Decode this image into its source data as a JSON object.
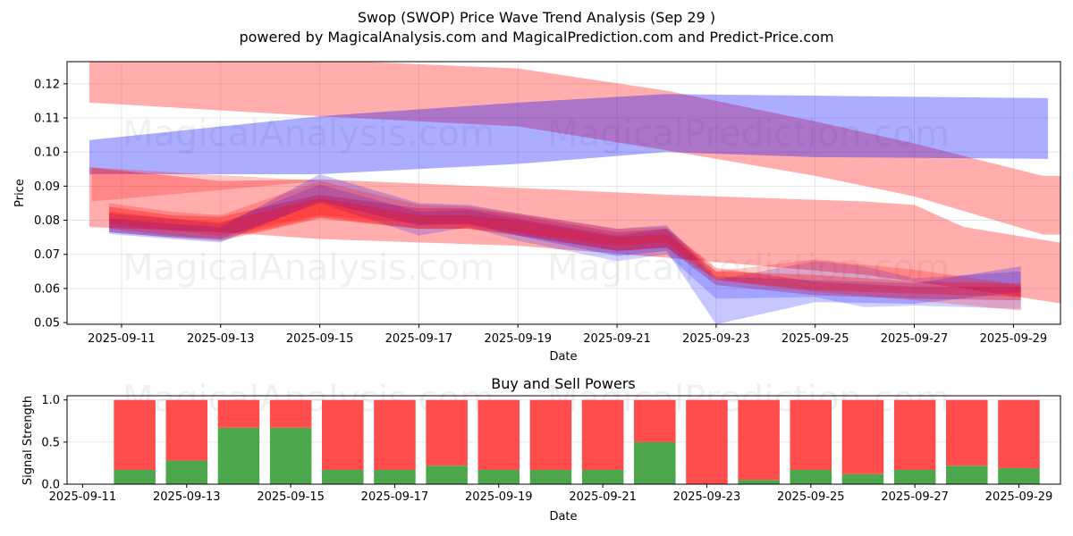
{
  "header": {
    "title": "Swop (SWOP) Price Wave Trend Analysis (Sep 29 )",
    "subtitle": "powered by MagicalAnalysis.com and MagicalPrediction.com and Predict-Price.com"
  },
  "watermarks": [
    "MagicalAnalysis.com",
    "MagicalPrediction.com"
  ],
  "colors": {
    "red_band": "#ff0000",
    "blue_band": "#0000ff",
    "buy": "#4ca64c",
    "sell": "#ff4c4c",
    "grid": "#e0e0e0"
  },
  "chart_data": [
    {
      "type": "area",
      "title": "",
      "xlabel": "Date",
      "ylabel": "Price",
      "x_start_date": "2025-09-11",
      "x_unit": "days since 2025-09-11",
      "xlim": [
        -1.1,
        18.95
      ],
      "ylim": [
        0.0495,
        0.1265
      ],
      "xticks": [
        0,
        2,
        4,
        6,
        8,
        10,
        12,
        14,
        16,
        18
      ],
      "xtick_labels": [
        "2025-09-11",
        "2025-09-13",
        "2025-09-15",
        "2025-09-17",
        "2025-09-19",
        "2025-09-21",
        "2025-09-23",
        "2025-09-25",
        "2025-09-27",
        "2025-09-29"
      ],
      "yticks": [
        0.05,
        0.06,
        0.07,
        0.08,
        0.09,
        0.1,
        0.11,
        0.12
      ],
      "ytick_labels": [
        "0.05",
        "0.06",
        "0.07",
        "0.08",
        "0.09",
        "0.10",
        "0.11",
        "0.12"
      ],
      "grid": true,
      "bands": [
        {
          "name": "long-term-red-upper",
          "color": "red",
          "opacity": 0.32,
          "x": [
            -0.65,
            4,
            8,
            11,
            14,
            16,
            18.6,
            18.95
          ],
          "upper": [
            0.127,
            0.127,
            0.1245,
            0.118,
            0.109,
            0.1025,
            0.093,
            0.093
          ],
          "lower": [
            0.1145,
            0.1105,
            0.1075,
            0.1005,
            0.093,
            0.087,
            0.0758,
            0.0758
          ]
        },
        {
          "name": "long-term-blue",
          "color": "blue",
          "opacity": 0.32,
          "x": [
            -0.65,
            4,
            8,
            11,
            14,
            18.7
          ],
          "upper": [
            0.1035,
            0.1105,
            0.1145,
            0.117,
            0.1165,
            0.1158
          ],
          "lower": [
            0.0935,
            0.0935,
            0.0965,
            0.1,
            0.0985,
            0.098
          ]
        },
        {
          "name": "mid-term-red",
          "color": "red",
          "opacity": 0.32,
          "x": [
            -0.65,
            2,
            4,
            8,
            11,
            15,
            16,
            17,
            19
          ],
          "upper": [
            0.0955,
            0.0915,
            0.092,
            0.0895,
            0.0875,
            0.0855,
            0.0845,
            0.078,
            0.0733
          ],
          "lower": [
            0.078,
            0.0765,
            0.0745,
            0.0725,
            0.069,
            0.064,
            0.062,
            0.06,
            0.0555
          ]
        },
        {
          "name": "mid-term-purple",
          "color": "red",
          "opacity": 0.22,
          "x": [
            -0.6,
            4,
            8,
            11
          ],
          "upper": [
            0.0955,
            0.0915,
            0.0895,
            0.087
          ],
          "lower": [
            0.0855,
            0.0915,
            0.0895,
            0.087
          ]
        },
        {
          "name": "short-wave-1",
          "color": "red",
          "opacity": 0.3,
          "x": [
            -0.25,
            1,
            2,
            4,
            6,
            7,
            8,
            10,
            11,
            12,
            14,
            16,
            18.15
          ],
          "upper": [
            0.084,
            0.0815,
            0.081,
            0.0875,
            0.0835,
            0.0835,
            0.0815,
            0.0765,
            0.0775,
            0.066,
            0.062,
            0.0605,
            0.0605
          ],
          "lower": [
            0.0765,
            0.075,
            0.074,
            0.0805,
            0.0775,
            0.0775,
            0.0755,
            0.071,
            0.072,
            0.061,
            0.058,
            0.057,
            0.0565
          ]
        },
        {
          "name": "short-wave-2",
          "color": "blue",
          "opacity": 0.22,
          "x": [
            -0.25,
            1,
            2,
            4,
            6,
            7,
            8,
            10,
            11,
            12,
            14,
            16,
            18.15
          ],
          "upper": [
            0.0805,
            0.079,
            0.078,
            0.0935,
            0.085,
            0.0845,
            0.082,
            0.0775,
            0.0785,
            0.0635,
            0.0625,
            0.0615,
            0.0665
          ],
          "lower": [
            0.076,
            0.0745,
            0.0735,
            0.0855,
            0.0785,
            0.079,
            0.0755,
            0.0695,
            0.071,
            0.0495,
            0.056,
            0.0555,
            0.059
          ]
        },
        {
          "name": "short-wave-3",
          "color": "blue",
          "opacity": 0.18,
          "x": [
            -0.25,
            1,
            2,
            4,
            6,
            7,
            8,
            10,
            11,
            12,
            14,
            15,
            16,
            18.15
          ],
          "upper": [
            0.082,
            0.0805,
            0.079,
            0.0905,
            0.0825,
            0.083,
            0.0805,
            0.0755,
            0.0775,
            0.0625,
            0.068,
            0.0665,
            0.063,
            0.065
          ],
          "lower": [
            0.0765,
            0.075,
            0.0745,
            0.085,
            0.0755,
            0.078,
            0.074,
            0.068,
            0.07,
            0.057,
            0.0575,
            0.0545,
            0.055,
            0.054
          ]
        },
        {
          "name": "short-wave-4",
          "color": "red",
          "opacity": 0.22,
          "x": [
            -0.25,
            1,
            2,
            4,
            6,
            7,
            8,
            10,
            11,
            12,
            14,
            16,
            18.15
          ],
          "upper": [
            0.085,
            0.0825,
            0.0815,
            0.0915,
            0.0845,
            0.084,
            0.082,
            0.0775,
            0.078,
            0.065,
            0.0685,
            0.0655,
            0.061
          ],
          "lower": [
            0.079,
            0.077,
            0.0755,
            0.0815,
            0.079,
            0.0785,
            0.0765,
            0.0725,
            0.0735,
            0.0625,
            0.059,
            0.0565,
            0.0535
          ]
        },
        {
          "name": "short-wave-5",
          "color": "red",
          "opacity": 0.28,
          "x": [
            -0.25,
            1,
            2,
            4,
            6,
            7,
            8,
            10,
            11,
            12,
            14,
            16,
            18.15
          ],
          "upper": [
            0.0825,
            0.0805,
            0.0795,
            0.0865,
            0.0815,
            0.0815,
            0.08,
            0.075,
            0.076,
            0.065,
            0.064,
            0.062,
            0.0615
          ],
          "lower": [
            0.0775,
            0.0755,
            0.0745,
            0.081,
            0.0775,
            0.0775,
            0.076,
            0.071,
            0.072,
            0.0625,
            0.0595,
            0.0585,
            0.0575
          ]
        }
      ]
    },
    {
      "type": "bar",
      "title": "Buy and Sell Powers",
      "xlabel": "Date",
      "ylabel": "Signal Strength",
      "x_start_date": "2025-09-11",
      "xlim": [
        -0.3,
        18.8
      ],
      "ylim": [
        0,
        1.05
      ],
      "xticks": [
        0,
        2,
        4,
        6,
        8,
        10,
        12,
        14,
        16,
        18
      ],
      "xtick_labels": [
        "2025-09-11",
        "2025-09-13",
        "2025-09-15",
        "2025-09-17",
        "2025-09-19",
        "2025-09-21",
        "2025-09-23",
        "2025-09-25",
        "2025-09-27",
        "2025-09-29"
      ],
      "yticks": [
        0.0,
        0.5,
        1.0
      ],
      "ytick_labels": [
        "0.0",
        "0.5",
        "1.0"
      ],
      "grid": true,
      "categories": [
        "2025-09-12",
        "2025-09-13",
        "2025-09-14",
        "2025-09-15",
        "2025-09-16",
        "2025-09-17",
        "2025-09-18",
        "2025-09-19",
        "2025-09-20",
        "2025-09-21",
        "2025-09-22",
        "2025-09-23",
        "2025-09-24",
        "2025-09-25",
        "2025-09-26",
        "2025-09-27",
        "2025-09-28",
        "2025-09-29"
      ],
      "series": [
        {
          "name": "Buy",
          "color": "green",
          "values": [
            0.17,
            0.28,
            0.67,
            0.67,
            0.17,
            0.17,
            0.22,
            0.17,
            0.17,
            0.17,
            0.5,
            0.0,
            0.05,
            0.17,
            0.12,
            0.17,
            0.22,
            0.19
          ]
        },
        {
          "name": "Sell",
          "color": "red",
          "values": [
            0.83,
            0.72,
            0.33,
            0.33,
            0.83,
            0.83,
            0.78,
            0.83,
            0.83,
            0.83,
            0.5,
            1.0,
            0.95,
            0.83,
            0.88,
            0.83,
            0.78,
            0.81
          ]
        }
      ]
    }
  ]
}
